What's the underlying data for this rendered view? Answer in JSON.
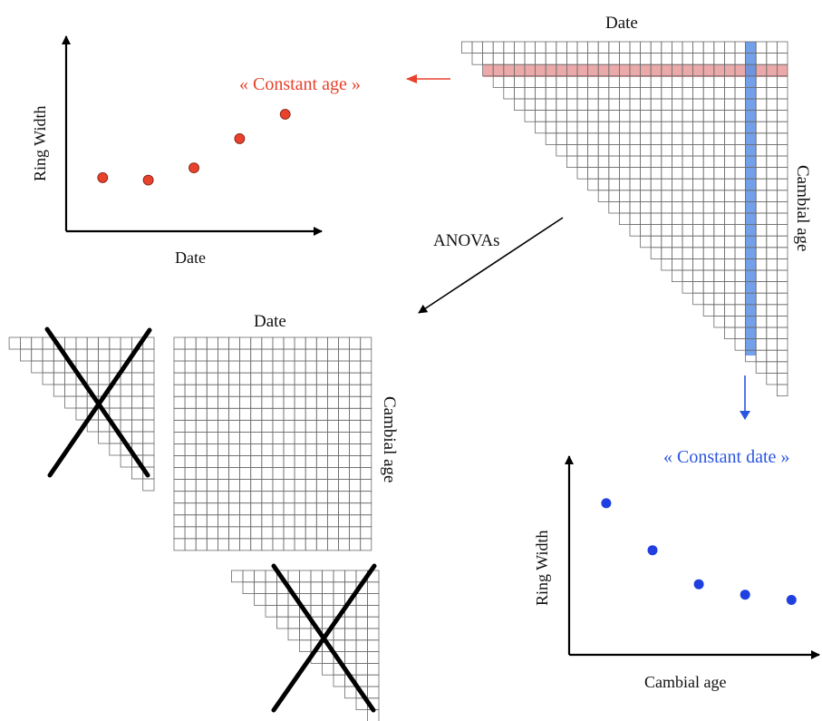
{
  "labels": {
    "top_date": "Date",
    "top_cambial_age": "Cambial age",
    "constant_age": "« Constant age »",
    "constant_date": "« Constant date »",
    "anovas": "ANOVAs",
    "middle_date": "Date",
    "middle_cambial_age": "Cambial age"
  },
  "colors": {
    "constant_age": "#e8412c",
    "constant_date": "#2a55e0",
    "row_highlight": "#e99a9a",
    "column_highlight": "#5b8fe6",
    "points_red": "#e8412c",
    "points_blue": "#1f3fe0"
  },
  "chart_data": [
    {
      "type": "scatter",
      "title": "",
      "xlabel": "Date",
      "ylabel": "Ring Width",
      "x": [
        1,
        2,
        3,
        4,
        5
      ],
      "y": [
        1.1,
        1.05,
        1.3,
        1.9,
        2.4
      ],
      "ylim": [
        0,
        4
      ],
      "xlim": [
        0.2,
        5.8
      ],
      "axis_ticks": false,
      "grid": false,
      "color": "#e8412c"
    },
    {
      "type": "scatter",
      "title": "",
      "xlabel": "Cambial age",
      "ylabel": "Ring Width",
      "x": [
        1,
        2,
        3,
        4,
        5
      ],
      "y": [
        2.9,
        2.0,
        1.35,
        1.15,
        1.05
      ],
      "ylim": [
        0,
        3.8
      ],
      "xlim": [
        0.2,
        5.6
      ],
      "axis_ticks": false,
      "grid": false,
      "color": "#1f3fe0"
    }
  ]
}
